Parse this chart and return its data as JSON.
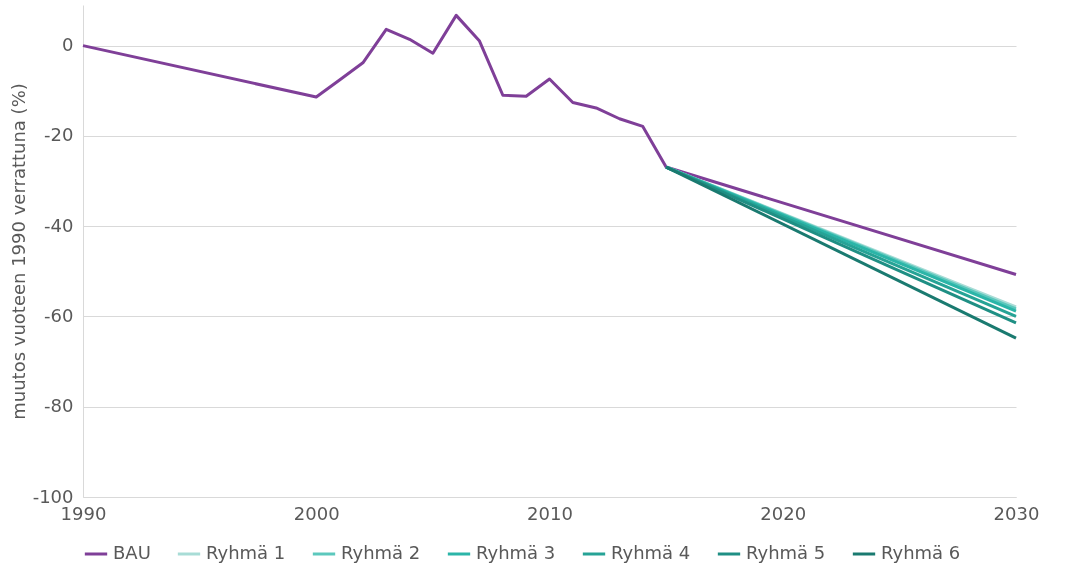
{
  "chart_data": {
    "type": "line",
    "ylabel": "muutos vuoteen 1990 verrattuna (%)",
    "xlim": [
      1990,
      2030
    ],
    "xticks": [
      1990,
      2000,
      2010,
      2020,
      2030
    ],
    "ylim": [
      -100,
      9
    ],
    "yticks": [
      -100,
      -80,
      -60,
      -40,
      -20,
      0
    ],
    "grid": "y",
    "legend": "bottom",
    "marker": "none",
    "line_style": "solid",
    "series": [
      {
        "name": "BAU",
        "color": "#7f3f98",
        "x": [
          1990,
          2000,
          2001,
          2002,
          2003,
          2004,
          2005,
          2006,
          2007,
          2008,
          2009,
          2010,
          2011,
          2012,
          2013,
          2014,
          2015,
          2030
        ],
        "values": [
          0,
          -11.4,
          -7.6,
          -3.8,
          3.6,
          1.4,
          -1.7,
          6.7,
          1.0,
          -11.0,
          -11.2,
          -7.4,
          -12.6,
          -13.8,
          -16.2,
          -17.9,
          -26.9,
          -50.7
        ]
      },
      {
        "name": "Ryhmä 1",
        "color": "#a8dcd6",
        "x": [
          2015,
          2030
        ],
        "values": [
          -26.9,
          -57.9
        ]
      },
      {
        "name": "Ryhmä 2",
        "color": "#5cc8bd",
        "x": [
          2015,
          2030
        ],
        "values": [
          -26.9,
          -58.3
        ]
      },
      {
        "name": "Ryhmä 3",
        "color": "#2bb5a8",
        "x": [
          2015,
          2030
        ],
        "values": [
          -26.9,
          -58.8
        ]
      },
      {
        "name": "Ryhmä 4",
        "color": "#26a396",
        "x": [
          2015,
          2030
        ],
        "values": [
          -26.9,
          -60.0
        ]
      },
      {
        "name": "Ryhmä 5",
        "color": "#1f8f84",
        "x": [
          2015,
          2030
        ],
        "values": [
          -26.9,
          -61.4
        ]
      },
      {
        "name": "Ryhmä 6",
        "color": "#1a7a70",
        "x": [
          2015,
          2030
        ],
        "values": [
          -26.9,
          -64.8
        ]
      }
    ]
  }
}
